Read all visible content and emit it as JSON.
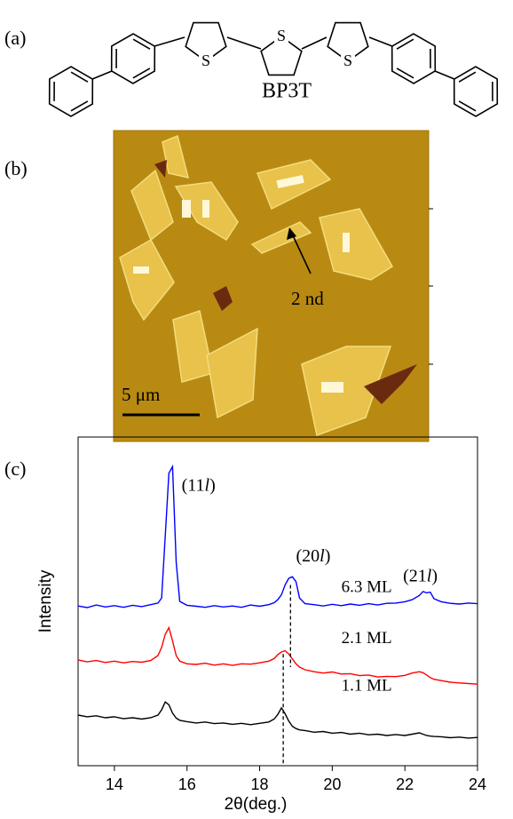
{
  "panel_labels": [
    "(a)",
    "(b)",
    "(c)"
  ],
  "molecule": {
    "name": "BP3T",
    "atoms": [
      "S",
      "S",
      "S"
    ]
  },
  "afm": {
    "scale_bar": "5 μm",
    "annotation": "2 nd"
  },
  "chart_data": {
    "type": "line",
    "x_label": "2θ(deg.)",
    "y_label": "Intensity",
    "xlim": [
      13,
      24
    ],
    "xticks": [
      14,
      16,
      18,
      20,
      22,
      24
    ],
    "ylim": [
      0,
      100
    ],
    "x": [
      13,
      13.25,
      13.5,
      13.75,
      14,
      14.25,
      14.5,
      14.75,
      15,
      15.2,
      15.3,
      15.4,
      15.5,
      15.6,
      15.7,
      15.8,
      16,
      16.25,
      16.5,
      16.75,
      17,
      17.25,
      17.5,
      17.75,
      18,
      18.25,
      18.4,
      18.5,
      18.6,
      18.7,
      18.8,
      18.9,
      19,
      19.1,
      19.25,
      19.5,
      19.75,
      20,
      20.25,
      20.5,
      20.75,
      21,
      21.25,
      21.5,
      21.75,
      22,
      22.2,
      22.4,
      22.5,
      22.6,
      22.7,
      22.8,
      23,
      23.25,
      23.5,
      23.75,
      24
    ],
    "series": [
      {
        "name": "6.3 ML",
        "color": "#0000ff",
        "values": [
          48.6,
          48.1,
          48.9,
          48.3,
          48.7,
          48.2,
          48.8,
          48.4,
          49.0,
          49.5,
          51,
          70,
          89,
          91,
          62,
          50,
          48.8,
          48.5,
          48.2,
          48.7,
          48.3,
          48.6,
          48.2,
          48.9,
          48.5,
          49,
          49.6,
          50.5,
          52,
          55,
          57,
          57.5,
          56,
          51,
          49.3,
          49,
          48.6,
          49.1,
          48.7,
          49.2,
          48.8,
          49.3,
          48.9,
          49.4,
          49.5,
          49.9,
          50.5,
          51.8,
          53,
          52.6,
          52.8,
          50.8,
          49.9,
          49.4,
          49.2,
          49.5,
          49.3
        ]
      },
      {
        "name": "2.1 ML",
        "color": "#ff0000",
        "values": [
          32.2,
          31.6,
          32.0,
          31.4,
          31.8,
          31.3,
          31.7,
          31.5,
          32.0,
          33.5,
          36,
          40,
          42,
          38,
          33.5,
          31.8,
          31.0,
          30.8,
          31.2,
          30.6,
          31.0,
          30.5,
          31.0,
          30.9,
          31.3,
          31.8,
          32.6,
          33.8,
          34.6,
          35.0,
          34,
          32.5,
          31.0,
          30.0,
          29.2,
          28.6,
          28.2,
          28.5,
          27.9,
          28.0,
          27.4,
          27.6,
          27.0,
          27.2,
          27.1,
          27.5,
          28.2,
          28.6,
          28.3,
          27.6,
          26.8,
          26.3,
          25.9,
          25.4,
          25.2,
          25.0,
          24.8
        ]
      },
      {
        "name": "1.1 ML",
        "color": "#000000",
        "values": [
          15.4,
          14.9,
          15.2,
          14.6,
          14.9,
          14.3,
          14.6,
          14.2,
          14.6,
          15.4,
          17,
          19.4,
          18.5,
          16.0,
          14.5,
          13.8,
          13.4,
          13.0,
          13.3,
          12.8,
          13.0,
          12.6,
          12.9,
          12.5,
          12.9,
          13.3,
          14.2,
          15.6,
          17.6,
          15.8,
          13.6,
          12.0,
          11.3,
          10.9,
          10.7,
          10.2,
          10.4,
          9.9,
          10.1,
          9.6,
          9.9,
          9.4,
          9.6,
          9.2,
          9.5,
          9.2,
          9.6,
          10.0,
          9.6,
          9.2,
          9.0,
          8.9,
          8.8,
          8.5,
          8.7,
          8.4,
          8.6
        ]
      }
    ],
    "annotations": [
      [
        "(11",
        "l",
        ")"
      ],
      [
        "(20",
        "l",
        ")"
      ],
      [
        "(21",
        "l",
        ")"
      ]
    ],
    "dashed_lines": [
      {
        "x": 18.85,
        "from": 55,
        "to": 30
      },
      {
        "x": 18.65,
        "from": 34,
        "to": 0
      }
    ]
  }
}
